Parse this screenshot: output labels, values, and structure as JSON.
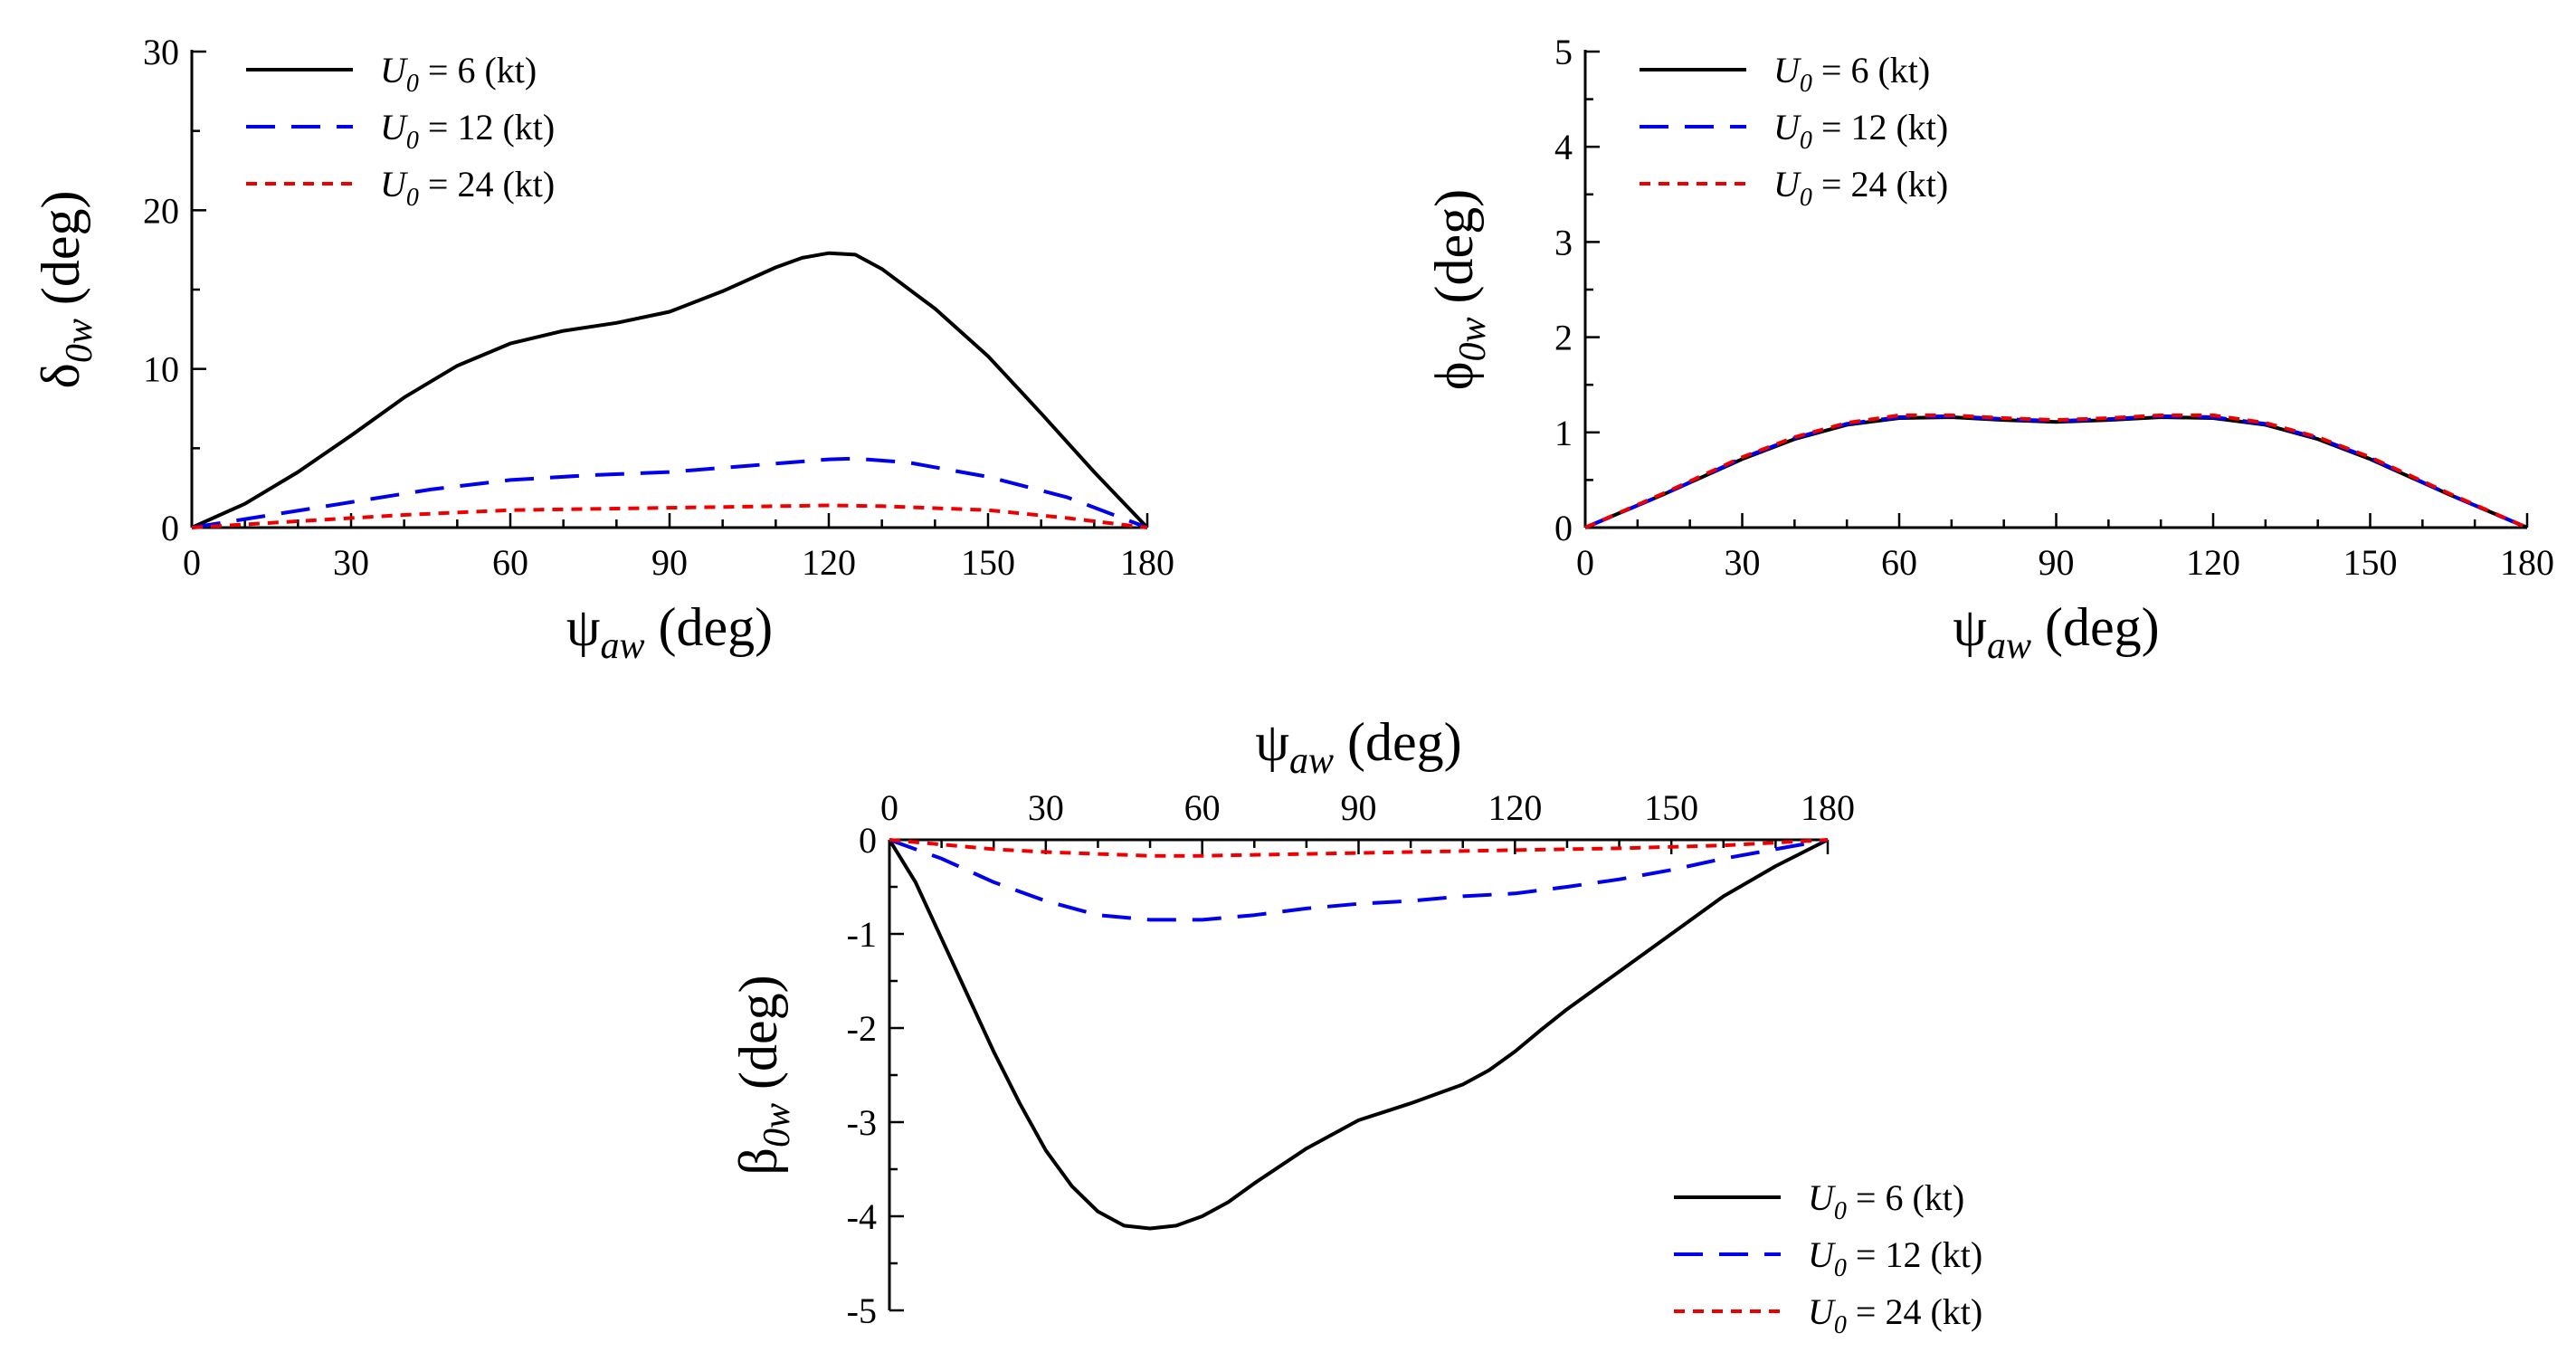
{
  "figure_title": "",
  "colors": {
    "u6": "#000000",
    "u12": "#0000ee",
    "u24": "#ee0000"
  },
  "chart_data": [
    {
      "id": "delta",
      "type": "line",
      "title": "",
      "xlabel": {
        "symbol": "ψ",
        "sub": "aw",
        "unit": "(deg)"
      },
      "ylabel": {
        "symbol": "δ",
        "sub": "0w",
        "unit": "(deg)"
      },
      "xlim": [
        0,
        180
      ],
      "ylim": [
        0,
        30
      ],
      "xticks": [
        0,
        30,
        60,
        90,
        120,
        150,
        180
      ],
      "yticks": [
        0,
        10,
        20,
        30
      ],
      "x_axis_position": "bottom",
      "legend_position": "top-left",
      "series": [
        {
          "name": "6 (kt)",
          "label_var": "U",
          "label_sub": "0",
          "style": "solid",
          "color": "#000000",
          "x": [
            0,
            10,
            20,
            30,
            40,
            50,
            60,
            70,
            80,
            90,
            100,
            110,
            115,
            120,
            125,
            130,
            140,
            150,
            160,
            170,
            180
          ],
          "y": [
            0,
            1.5,
            3.5,
            5.8,
            8.2,
            10.2,
            11.6,
            12.4,
            12.9,
            13.6,
            14.9,
            16.4,
            17.0,
            17.3,
            17.2,
            16.3,
            13.8,
            10.8,
            7.2,
            3.5,
            0
          ]
        },
        {
          "name": "12 (kt)",
          "label_var": "U",
          "label_sub": "0",
          "style": "dashed",
          "color": "#0000ee",
          "x": [
            0,
            15,
            30,
            45,
            60,
            75,
            90,
            105,
            120,
            125,
            135,
            150,
            165,
            180
          ],
          "y": [
            0,
            0.8,
            1.6,
            2.4,
            3.0,
            3.3,
            3.5,
            3.9,
            4.3,
            4.35,
            4.1,
            3.2,
            1.9,
            0
          ]
        },
        {
          "name": "24 (kt)",
          "label_var": "U",
          "label_sub": "0",
          "style": "dotted",
          "color": "#ee0000",
          "x": [
            0,
            20,
            40,
            60,
            80,
            100,
            120,
            130,
            150,
            165,
            180
          ],
          "y": [
            0,
            0.4,
            0.8,
            1.1,
            1.2,
            1.3,
            1.4,
            1.35,
            1.1,
            0.6,
            0
          ]
        }
      ]
    },
    {
      "id": "phi",
      "type": "line",
      "title": "",
      "xlabel": {
        "symbol": "ψ",
        "sub": "aw",
        "unit": "(deg)"
      },
      "ylabel": {
        "symbol": "ϕ",
        "sub": "0w",
        "unit": "(deg)"
      },
      "xlim": [
        0,
        180
      ],
      "ylim": [
        0,
        5
      ],
      "xticks": [
        0,
        30,
        60,
        90,
        120,
        150,
        180
      ],
      "yticks": [
        0,
        1,
        2,
        3,
        4,
        5
      ],
      "x_axis_position": "bottom",
      "legend_position": "top-left",
      "series": [
        {
          "name": "6 (kt)",
          "label_var": "U",
          "label_sub": "0",
          "style": "solid",
          "color": "#000000",
          "x": [
            0,
            15,
            30,
            40,
            50,
            60,
            70,
            80,
            90,
            100,
            110,
            120,
            130,
            140,
            150,
            165,
            180
          ],
          "y": [
            0,
            0.35,
            0.72,
            0.93,
            1.08,
            1.15,
            1.16,
            1.13,
            1.11,
            1.13,
            1.16,
            1.15,
            1.08,
            0.93,
            0.72,
            0.35,
            0
          ]
        },
        {
          "name": "12 (kt)",
          "label_var": "U",
          "label_sub": "0",
          "style": "dashed",
          "color": "#0000ee",
          "x": [
            0,
            15,
            30,
            40,
            50,
            60,
            70,
            80,
            90,
            100,
            110,
            120,
            130,
            140,
            150,
            165,
            180
          ],
          "y": [
            0,
            0.35,
            0.73,
            0.94,
            1.09,
            1.16,
            1.17,
            1.14,
            1.12,
            1.14,
            1.17,
            1.16,
            1.09,
            0.94,
            0.73,
            0.35,
            0
          ]
        },
        {
          "name": "24 (kt)",
          "label_var": "U",
          "label_sub": "0",
          "style": "dotted",
          "color": "#ee0000",
          "x": [
            0,
            15,
            30,
            40,
            50,
            60,
            70,
            80,
            90,
            100,
            110,
            120,
            130,
            140,
            150,
            165,
            180
          ],
          "y": [
            0,
            0.36,
            0.74,
            0.95,
            1.1,
            1.18,
            1.18,
            1.15,
            1.13,
            1.15,
            1.18,
            1.18,
            1.1,
            0.95,
            0.74,
            0.36,
            0
          ]
        }
      ]
    },
    {
      "id": "beta",
      "type": "line",
      "title": "",
      "xlabel": {
        "symbol": "ψ",
        "sub": "aw",
        "unit": "(deg)"
      },
      "ylabel": {
        "symbol": "β",
        "sub": "0w",
        "unit": "(deg)"
      },
      "xlim": [
        0,
        180
      ],
      "ylim": [
        -5,
        0
      ],
      "xticks": [
        0,
        30,
        60,
        90,
        120,
        150,
        180
      ],
      "yticks": [
        0,
        -1,
        -2,
        -3,
        -4,
        -5
      ],
      "x_axis_position": "top",
      "legend_position": "bottom-right",
      "series": [
        {
          "name": "6 (kt)",
          "label_var": "U",
          "label_sub": "0",
          "style": "solid",
          "color": "#000000",
          "x": [
            0,
            5,
            10,
            15,
            20,
            25,
            30,
            35,
            40,
            45,
            50,
            55,
            60,
            65,
            70,
            80,
            90,
            100,
            110,
            115,
            120,
            125,
            130,
            140,
            150,
            160,
            170,
            180
          ],
          "y": [
            0,
            -0.45,
            -1.05,
            -1.65,
            -2.25,
            -2.8,
            -3.3,
            -3.68,
            -3.95,
            -4.1,
            -4.13,
            -4.1,
            -4.0,
            -3.85,
            -3.65,
            -3.28,
            -2.98,
            -2.8,
            -2.6,
            -2.45,
            -2.25,
            -2.02,
            -1.8,
            -1.4,
            -1.0,
            -0.6,
            -0.28,
            0
          ]
        },
        {
          "name": "12 (kt)",
          "label_var": "U",
          "label_sub": "0",
          "style": "dashed",
          "color": "#0000ee",
          "x": [
            0,
            10,
            20,
            30,
            40,
            50,
            60,
            70,
            80,
            90,
            100,
            110,
            120,
            130,
            140,
            150,
            160,
            170,
            180
          ],
          "y": [
            0,
            -0.2,
            -0.45,
            -0.65,
            -0.8,
            -0.85,
            -0.85,
            -0.8,
            -0.73,
            -0.68,
            -0.65,
            -0.6,
            -0.57,
            -0.5,
            -0.42,
            -0.32,
            -0.2,
            -0.1,
            0
          ]
        },
        {
          "name": "24 (kt)",
          "label_var": "U",
          "label_sub": "0",
          "style": "dotted",
          "color": "#ee0000",
          "x": [
            0,
            10,
            20,
            30,
            40,
            50,
            60,
            80,
            100,
            120,
            140,
            160,
            170,
            180
          ],
          "y": [
            0,
            -0.05,
            -0.1,
            -0.13,
            -0.15,
            -0.17,
            -0.17,
            -0.15,
            -0.13,
            -0.11,
            -0.09,
            -0.06,
            -0.03,
            0
          ]
        }
      ]
    }
  ]
}
